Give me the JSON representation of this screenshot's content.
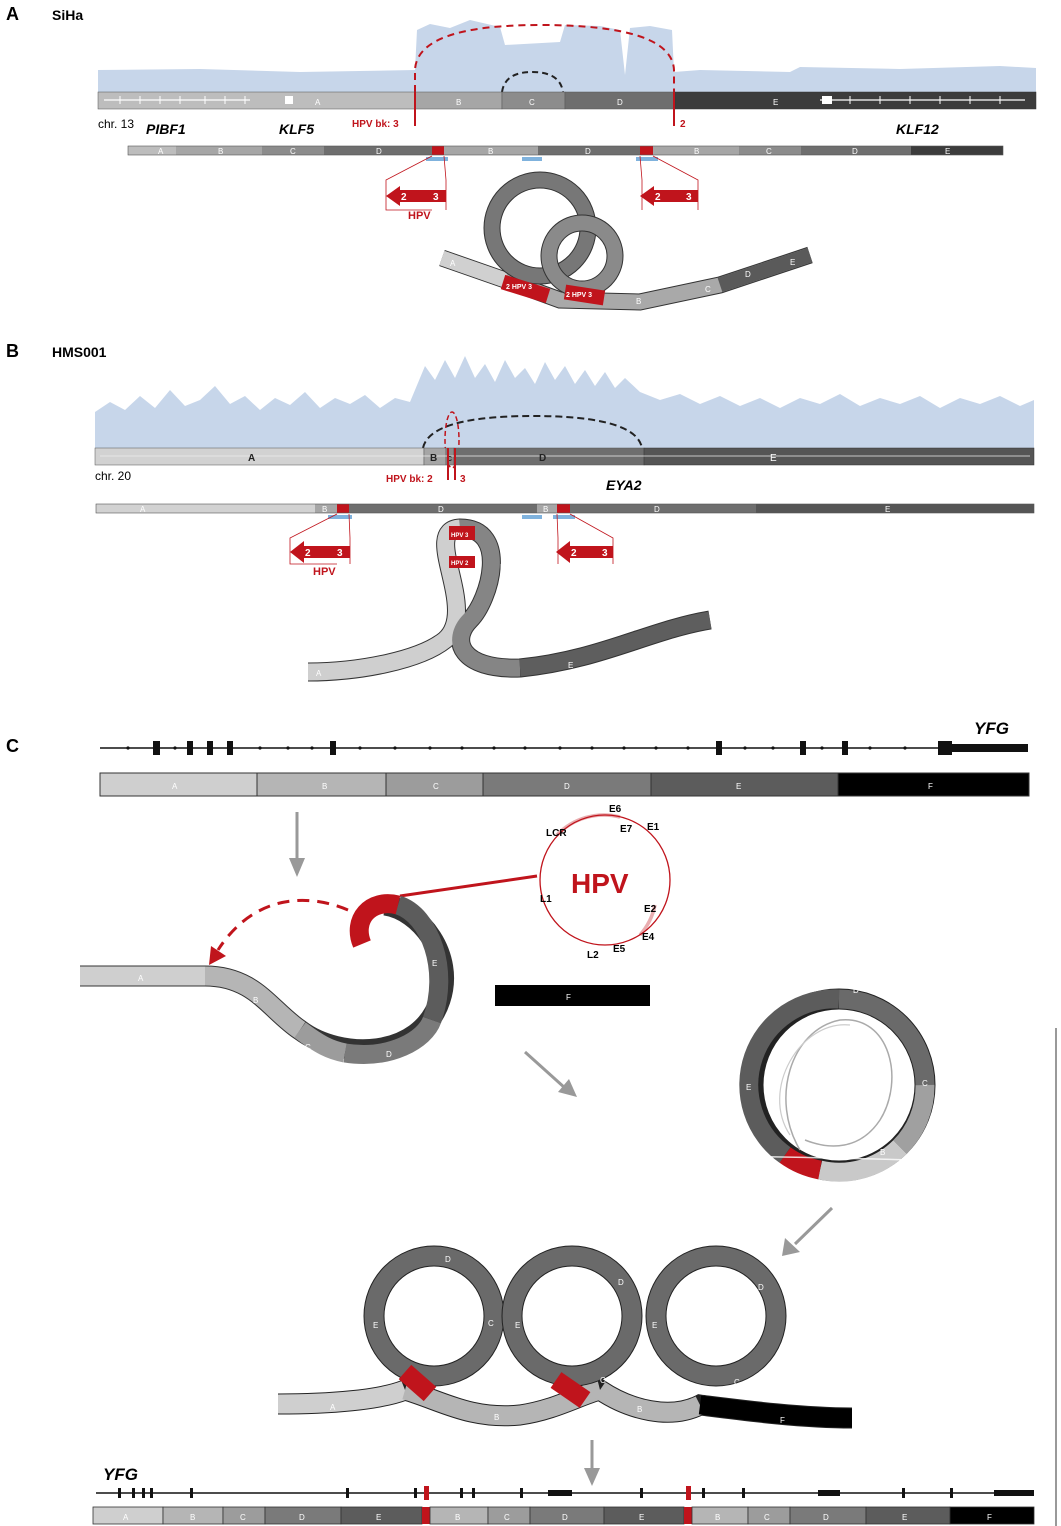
{
  "panel_a": {
    "letter": "A",
    "sample": "SiHa",
    "chrom": "chr. 13",
    "genes": [
      "PIBF1",
      "KLF5",
      "KLF12"
    ],
    "hpv_bk": "HPV bk: 3",
    "bk2": "2",
    "hpv": "HPV",
    "arrow_nums": [
      "2",
      "3"
    ],
    "segments": [
      "A",
      "B",
      "C",
      "D",
      "E"
    ],
    "circle_labels": [
      "2 HPV 3",
      "2 HPV 3"
    ],
    "colors": {
      "coverage": "#c7d6ea",
      "hpv_red": "#c0141c",
      "bk_blue": "#7fb2dd"
    }
  },
  "panel_b": {
    "letter": "B",
    "sample": "HMS001",
    "chrom": "chr. 20",
    "gene": "EYA2",
    "hpv_bk": "HPV bk: 2",
    "bk3": "3",
    "hpv": "HPV",
    "arrow_nums": [
      "2",
      "3"
    ],
    "segments": [
      "A",
      "B",
      "C",
      "D",
      "E"
    ],
    "circle_labels": [
      "HPV 3",
      "HPV 2"
    ]
  },
  "panel_c": {
    "letter": "C",
    "gene": "YFG",
    "segments": [
      "A",
      "B",
      "C",
      "D",
      "E",
      "F"
    ],
    "hpv": "HPV",
    "hpv_genes": [
      "E6",
      "E7",
      "E1",
      "E2",
      "E4",
      "E5",
      "L2",
      "L1",
      "LCR"
    ],
    "bottom_gene": "YFG",
    "bottom_segments": [
      "A",
      "B",
      "C",
      "D",
      "E",
      "B",
      "C",
      "D",
      "E",
      "B",
      "C",
      "D",
      "E",
      "F"
    ]
  }
}
